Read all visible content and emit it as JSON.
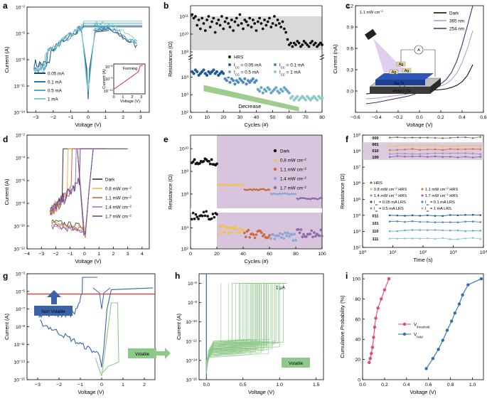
{
  "figure": {
    "panels": [
      "a",
      "b",
      "c",
      "d",
      "e",
      "f",
      "g",
      "h",
      "i"
    ]
  },
  "chart_data": [
    {
      "id": "a",
      "type": "line",
      "scale_y": "log",
      "xlabel": "Voltage (V)",
      "ylabel": "Current (A)",
      "xlim": [
        -3.5,
        3.5
      ],
      "ylim_exp": [
        -14,
        -2
      ],
      "xticks": [
        -3,
        -2,
        -1,
        0,
        1,
        2,
        3
      ],
      "yticks_exp": [
        -14,
        -11,
        -8,
        -5,
        -2
      ],
      "legend": [
        "0.05 mA",
        "0.1 mA",
        "0.5 mA",
        "1 mA"
      ],
      "colors": [
        "#17476f",
        "#2a78b3",
        "#55a8b8",
        "#7fcfcb"
      ],
      "compliance_exp": [
        -4.25,
        -4.1,
        -3.85,
        -3.6
      ],
      "inset": {
        "title": "Forming",
        "xlabel": "Voltage (V)",
        "ylabel": "Current (A)",
        "xticks": [
          0,
          1,
          2,
          3
        ],
        "yticks_exp": [
          -13,
          -9,
          -5
        ]
      }
    },
    {
      "id": "b",
      "type": "scatter",
      "scale_y": "log",
      "xlabel": "Cycles (#)",
      "ylabel": "Resistance (Ω)",
      "xticks": [
        0,
        10,
        20,
        30,
        40,
        50,
        60,
        70,
        80
      ],
      "yticks_upper_exp": [
        9,
        10,
        11
      ],
      "yticks_lower_exp": [
        2,
        3,
        4
      ],
      "legend": {
        "hrs": "HRS",
        "series": [
          "I<sub>CC</sub> = 0.05 mA",
          "I<sub>CC</sub> = 0.1 mA",
          "I<sub>CC</sub> = 0.5 mA",
          "I<sub>CC</sub> = 1 mA"
        ]
      },
      "legend_text": [
        "HRS",
        "ICC = 0.05 mA",
        "ICC = 0.1 mA",
        "ICC = 0.5 mA",
        "ICC = 1 mA"
      ],
      "annotation": "Decrease",
      "colors": [
        "#1f5a95",
        "#4c87c3",
        "#6aa7c8",
        "#8ecacb"
      ],
      "hrs_log": [
        11.1,
        10.9,
        11.0,
        10.5,
        10.8,
        10.3,
        10.9,
        10.6,
        10.2,
        10.8,
        11.0,
        10.4,
        10.7,
        10.9,
        10.1,
        10.6,
        10.8,
        10.5,
        11.0,
        10.3,
        10.7,
        10.9,
        10.6,
        10.4,
        10.8,
        10.2,
        10.7,
        10.9,
        10.5,
        11.1,
        10.6,
        10.3,
        10.8,
        10.7,
        10.5,
        10.9,
        10.4,
        10.8,
        10.6,
        10.2,
        10.7,
        10.9,
        10.6,
        10.3,
        10.8,
        10.5,
        10.7,
        10.9,
        10.4,
        10.6,
        11.0,
        10.5,
        10.8,
        10.6,
        10.4,
        10.7,
        10.3,
        10.1,
        9.7,
        9.4,
        9.5,
        9.3,
        9.5,
        9.4,
        9.6,
        9.5,
        9.3,
        9.4,
        9.6,
        9.5,
        9.4,
        9.3,
        9.5,
        9.6,
        9.4,
        9.5,
        9.3,
        9.4,
        9.5,
        9.4
      ],
      "lrs_log": [
        4.3,
        4.2,
        4.4,
        4.3,
        4.1,
        4.2,
        4.3,
        4.4,
        4.2,
        4.1,
        4.3,
        4.2,
        4.3,
        4.4,
        4.2,
        4.3,
        4.1,
        4.2,
        4.3,
        4.2,
        3.9,
        3.8,
        4.0,
        3.7,
        3.9,
        3.8,
        3.6,
        3.8,
        3.7,
        3.9,
        3.8,
        3.7,
        3.9,
        3.6,
        3.8,
        3.7,
        3.8,
        3.9,
        3.7,
        3.8,
        3.3,
        3.2,
        3.4,
        3.1,
        3.3,
        3.2,
        3.4,
        3.3,
        3.1,
        3.2,
        3.3,
        3.4,
        3.2,
        3.1,
        3.3,
        3.2,
        3.4,
        3.3,
        3.2,
        3.1,
        2.8,
        2.9,
        2.7,
        2.8,
        2.9,
        2.7,
        2.8,
        2.9,
        2.8,
        2.7,
        2.9,
        2.8,
        2.7,
        2.8,
        2.9,
        2.8,
        2.7,
        2.9,
        2.8,
        2.8
      ]
    },
    {
      "id": "c",
      "type": "line",
      "xlabel": "Voltage (V)",
      "ylabel": "Current (nA)",
      "xlim": [
        -0.6,
        0.6
      ],
      "ylim": [
        -0.3,
        1.2
      ],
      "xticks": [
        -0.6,
        -0.4,
        -0.2,
        0.0,
        0.2,
        0.4,
        0.6
      ],
      "yticks": [
        0.0,
        0.3,
        0.6,
        0.9,
        1.2
      ],
      "legend": [
        "Dark",
        "365 nm",
        "254 nm"
      ],
      "colors": [
        "#000000",
        "#b594d1",
        "#4a2a73"
      ],
      "x": [
        -0.5,
        -0.4,
        -0.3,
        -0.2,
        -0.1,
        0.0,
        0.1,
        0.2,
        0.25,
        0.3,
        0.35,
        0.4,
        0.45,
        0.5
      ],
      "dark": [
        -0.04,
        -0.03,
        -0.02,
        -0.015,
        -0.01,
        0.0,
        0.01,
        0.02,
        0.03,
        0.05,
        0.08,
        0.13,
        0.22,
        0.37
      ],
      "s365": [
        -0.11,
        -0.1,
        -0.08,
        -0.06,
        -0.04,
        -0.01,
        0.02,
        0.07,
        0.1,
        0.16,
        0.25,
        0.4,
        0.6,
        0.85
      ],
      "s254": [
        -0.18,
        -0.16,
        -0.13,
        -0.1,
        -0.07,
        -0.02,
        0.03,
        0.1,
        0.16,
        0.26,
        0.42,
        0.65,
        0.92,
        1.2
      ],
      "inset_texts": {
        "power": "1.1 mW cm<sup>−2</sup>",
        "ag1": "Ag",
        "ag2": "Ag",
        "ag3": "Ag",
        "meter": "A",
        "oxide": "Ga<sub>2</sub>O<sub>3</sub>",
        "substrate": "Pt/SiO<sub>2</sub>/Si"
      },
      "inset_plain": [
        "1.1 mW cm−2",
        "Ag",
        "A",
        "Ga2O3",
        "Pt/SiO2/Si"
      ]
    },
    {
      "id": "d",
      "type": "line",
      "scale_y": "log",
      "xlabel": "Voltage (V)",
      "ylabel": "Current (A)",
      "xlim": [
        -4,
        4.5
      ],
      "ylim_exp": [
        -12,
        -2
      ],
      "xticks": [
        -4,
        -3,
        -2,
        -1,
        0,
        1,
        2,
        3,
        4
      ],
      "yticks_exp": [
        -12,
        -10,
        -8,
        -6,
        -4,
        -2
      ],
      "legend": [
        "Dark",
        "0.8 mW cm−2",
        "1.1 mW cm−2",
        "1.4 mW cm−2",
        "1.7 mW cm−2"
      ],
      "legend_html": [
        "Dark",
        "0.8 mW cm<sup>−2</sup>",
        "1.1 mW cm<sup>−2</sup>",
        "1.4 mW cm<sup>−2</sup>",
        "1.7 mW cm<sup>−2</sup>"
      ],
      "colors": [
        "#333333",
        "#f2b25a",
        "#c96b3c",
        "#a07ab8",
        "#6a4a8c"
      ]
    },
    {
      "id": "e",
      "type": "scatter",
      "scale_y": "log",
      "xlabel": "Cycles (#)",
      "ylabel": "Resistance (Ω)",
      "xticks": [
        0,
        20,
        40,
        60,
        80,
        100
      ],
      "yticks_upper_exp": [
        8,
        9,
        10
      ],
      "yticks_lower_exp": [
        2,
        3
      ],
      "legend": [
        "Dark",
        "0.8 mW cm−2",
        "1.1 mW cm−2",
        "1.4 mW cm−2",
        "1.7 mW cm−2"
      ],
      "legend_html": [
        "Dark",
        "0.8 mW cm<sup>−2</sup>",
        "1.1 mW cm<sup>−2</sup>",
        "1.4 mW cm<sup>−2</sup>",
        "1.7 mW cm<sup>−2</sup>"
      ],
      "colors": [
        "#111111",
        "#f2c14e",
        "#c96b3c",
        "#8aa6d6",
        "#8a6aa8"
      ],
      "hrs_levels_log": [
        9.4,
        8.4,
        8.2,
        8.0,
        7.8
      ],
      "lrs_levels_log": [
        3.6,
        2.9,
        2.7,
        2.6,
        2.75
      ]
    },
    {
      "id": "f",
      "type": "line",
      "scale_x": "log",
      "scale_y": "log",
      "xlabel": "Time (s)",
      "ylabel": "Resistance (Ω)",
      "xlim_exp": [
        0,
        4
      ],
      "ylim_exp": [
        2,
        9
      ],
      "xticks_exp": [
        0,
        1,
        2,
        3,
        4
      ],
      "yticks_exp": [
        2,
        3,
        4,
        5,
        6,
        7,
        8,
        9
      ],
      "legend": [
        "HRS",
        "0.8 mW cm−2 HRS",
        "1.1 mW cm−2 HRS",
        "1.4 mW cm−2 HRS",
        "1.7 mW cm−2 HRS",
        "Icc = 0.05 mA LRS",
        "Icc = 0.1 mA LRS",
        "Icc = 0.5 mA LRS",
        "Icc = 1 mA LRS"
      ],
      "legend_html": [
        "HRS",
        "0.8 mW cm<sup>−2</sup> HRS",
        "1.1 mW cm<sup>−2</sup> HRS",
        "1.4 mW cm<sup>−2</sup> HRS",
        "1.7 mW cm<sup>−2</sup> HRS",
        "I<sub>cc</sub> = 0.05 mA LRS",
        "I<sub>cc</sub> = 0.1 mA LRS",
        "I<sub>cc</sub> = 0.5 mA LRS",
        "I<sub>cc</sub> = 1 mA LRS"
      ],
      "colors": [
        "#777777",
        "#f2c14e",
        "#d27a3a",
        "#a58fc7",
        "#8a6aa8",
        "#1f5a95",
        "#4c87c3",
        "#6aa7c8",
        "#8ecacb"
      ],
      "levels_log": [
        8.85,
        8.35,
        8.1,
        7.85,
        7.65,
        4.0,
        3.6,
        3.05,
        2.55
      ],
      "codes": [
        "000",
        "001",
        "010",
        "100",
        "011",
        "101",
        "110",
        "111"
      ],
      "code_colors": [
        "#999999",
        "#e8a64a",
        "#a58fc7",
        "#8a6aa8",
        "#1f5a95",
        "#4c87c3",
        "#6aa7c8",
        "#8ecacb"
      ]
    },
    {
      "id": "g",
      "type": "line",
      "scale_y": "log",
      "xlabel": "Voltage (V)",
      "ylabel": "Current (A)",
      "xlim": [
        -3.5,
        2.5
      ],
      "ylim_exp": [
        -15,
        -3
      ],
      "xticks": [
        -3,
        -2,
        -1,
        0,
        1,
        2
      ],
      "yticks_exp": [
        -15,
        -13,
        -11,
        -9,
        -7,
        -5,
        -3
      ],
      "threshold_exp": -5.3,
      "annotations": [
        "Non Volatile",
        "Volatile"
      ],
      "colors": [
        "#3b64a8",
        "#8fc98a",
        "#e23b3b"
      ]
    },
    {
      "id": "h",
      "type": "line",
      "scale_y": "log",
      "xlabel": "Voltage (V)",
      "ylabel": "Current (A)",
      "xlim": [
        -0.1,
        1.6
      ],
      "ylim_exp": [
        -16,
        -5
      ],
      "xticks": [
        0.0,
        0.5,
        1.0,
        1.5
      ],
      "yticks_exp": [
        -16,
        -14,
        -12,
        -10,
        -8,
        -6
      ],
      "compliance_label": "1 µA",
      "compliance_exp": -6,
      "annotation": "Volatile",
      "colors": [
        "#8fc98a",
        "#3b64a8"
      ],
      "switch_voltages": [
        0.35,
        0.45,
        0.5,
        0.55,
        0.6,
        0.62,
        0.65,
        0.68,
        0.7,
        0.72,
        0.75,
        0.78,
        0.8,
        0.82,
        0.85,
        0.88,
        0.9,
        0.93,
        0.95,
        0.98,
        1.0,
        1.05
      ],
      "plateau_exp": [
        -12.5,
        -12.2,
        -12.8,
        -12.4,
        -12.0,
        -12.6,
        -12.3,
        -12.7,
        -12.1,
        -12.5,
        -12.9,
        -12.2,
        -12.4,
        -12.6,
        -12.3,
        -12.0,
        -12.7,
        -12.5,
        -12.2,
        -12.4,
        -12.8,
        -12.3
      ]
    },
    {
      "id": "i",
      "type": "line",
      "xlabel": "Voltage (V)",
      "ylabel": "Cumulative Probability (%)",
      "xlim": [
        0.0,
        1.1
      ],
      "ylim": [
        0,
        105
      ],
      "xticks": [
        0.0,
        0.2,
        0.4,
        0.6,
        0.8,
        1.0
      ],
      "yticks": [
        0,
        20,
        40,
        60,
        80,
        100
      ],
      "series": [
        {
          "name": "V<sub>threshold</sub>",
          "label_text": "Vthreshold",
          "color": "#e4457a",
          "x": [
            0.06,
            0.07,
            0.08,
            0.09,
            0.1,
            0.11,
            0.12,
            0.14,
            0.17,
            0.2,
            0.24
          ],
          "y": [
            17,
            21,
            26,
            32,
            42,
            52,
            61,
            71,
            80,
            89,
            100
          ]
        },
        {
          "name": "V<sub>hold</sub>",
          "label_text": "Vhold",
          "color": "#2c6fb3",
          "x": [
            0.58,
            0.64,
            0.69,
            0.73,
            0.77,
            0.81,
            0.84,
            0.88,
            0.91,
            0.96,
            1.08
          ],
          "y": [
            11,
            21,
            30,
            39,
            49,
            58,
            66,
            75,
            84,
            94,
            100
          ]
        }
      ]
    }
  ]
}
